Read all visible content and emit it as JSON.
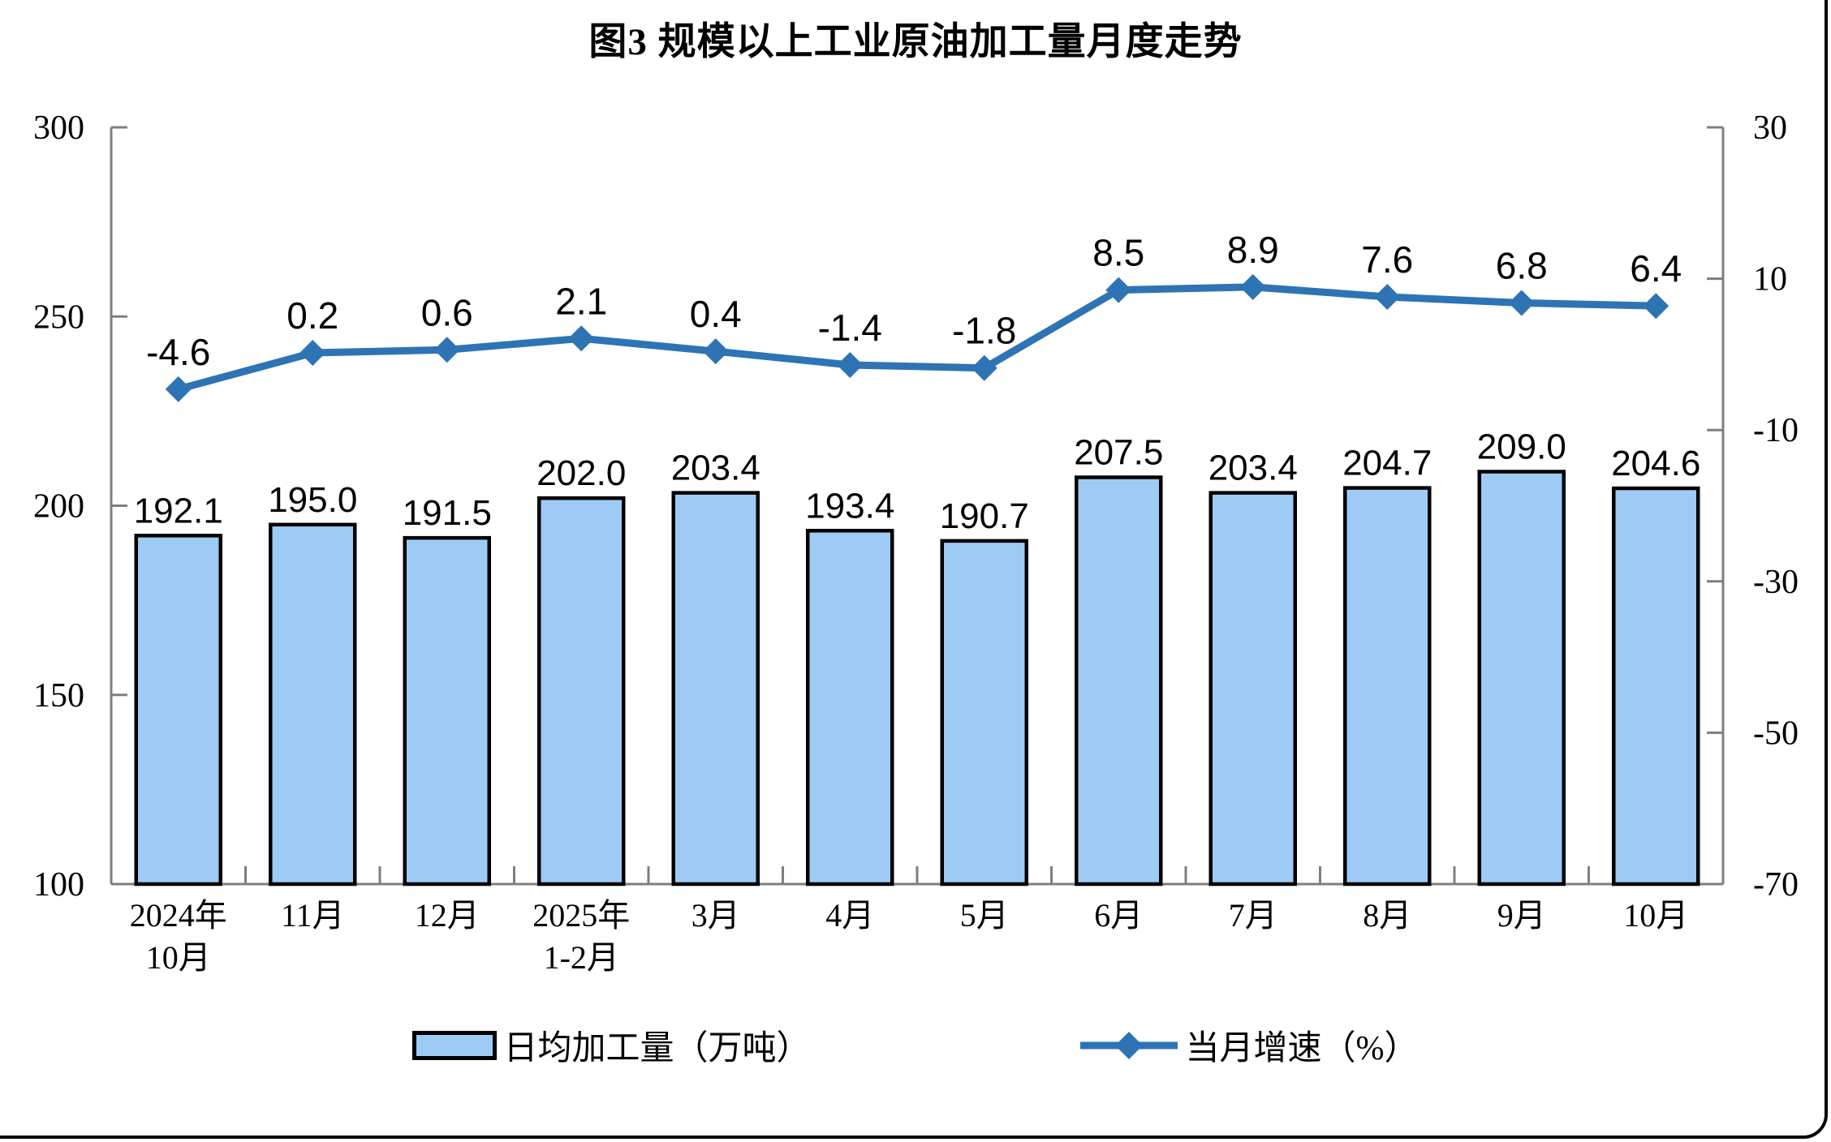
{
  "colors": {
    "bar_fill": "#9ECBF5",
    "bar_border": "#000000",
    "line": "#2E74B5",
    "axis": "#7F7F7F",
    "text": "#000000"
  },
  "legend": {
    "items": [
      {
        "label": "日均加工量（万吨）",
        "marker": "bar-swatch"
      },
      {
        "label": "当月增速（%）",
        "marker": "line-diamond-swatch"
      }
    ]
  },
  "chart_data": {
    "type": "bar+line combo, dual y-axes",
    "title": "图3 规模以上工业原油加工量月度走势",
    "categories": [
      "2024年\n10月",
      "11月",
      "12月",
      "2025年\n1-2月",
      "3月",
      "4月",
      "5月",
      "6月",
      "7月",
      "8月",
      "9月",
      "10月"
    ],
    "series": [
      {
        "name": "日均加工量（万吨）",
        "type": "bar",
        "axis": "left",
        "values": [
          192.1,
          195.0,
          191.5,
          202.0,
          203.4,
          193.4,
          190.7,
          207.5,
          203.4,
          204.7,
          209.0,
          204.6
        ],
        "labels": [
          "192.1",
          "195.0",
          "191.5",
          "202.0",
          "203.4",
          "193.4",
          "190.7",
          "207.5",
          "203.4",
          "204.7",
          "209.0",
          "204.6"
        ]
      },
      {
        "name": "当月增速（%）",
        "type": "line",
        "axis": "right",
        "values": [
          -4.6,
          0.2,
          0.6,
          2.1,
          0.4,
          -1.4,
          -1.8,
          8.5,
          8.9,
          7.6,
          6.8,
          6.4
        ],
        "labels": [
          "-4.6",
          "0.2",
          "0.6",
          "2.1",
          "0.4",
          "-1.4",
          "-1.8",
          "8.5",
          "8.9",
          "7.6",
          "6.8",
          "6.4"
        ]
      }
    ],
    "left_axis": {
      "min": 100,
      "max": 300,
      "ticks": [
        300,
        250,
        200,
        150,
        100
      ]
    },
    "right_axis": {
      "min": -70,
      "max": 30,
      "ticks": [
        30,
        10,
        -10,
        -30,
        -50,
        -70
      ]
    },
    "grid": false,
    "legend_position": "bottom"
  }
}
